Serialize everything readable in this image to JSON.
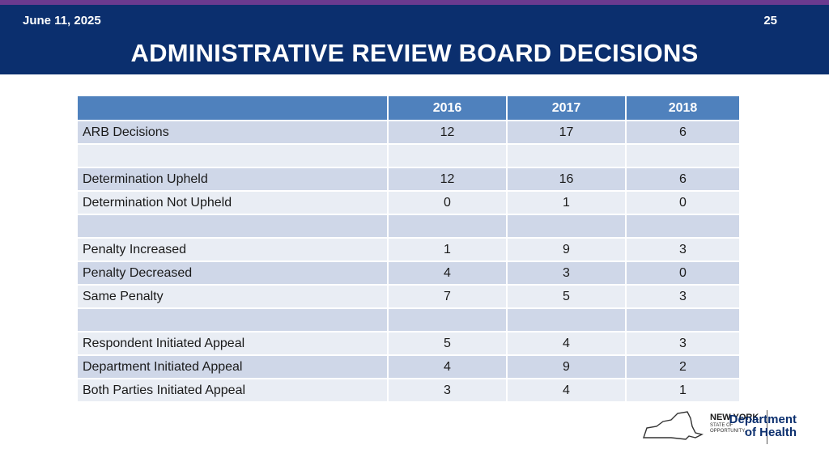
{
  "header": {
    "date": "June 11, 2025",
    "page_number": "25",
    "title": "ADMINISTRATIVE REVIEW BOARD DECISIONS"
  },
  "table": {
    "columns": [
      "",
      "2016",
      "2017",
      "2018"
    ],
    "rows": [
      {
        "label": "ARB Decisions",
        "values": [
          "12",
          "17",
          "6"
        ]
      },
      {
        "label": "",
        "values": [
          "",
          "",
          ""
        ]
      },
      {
        "label": "Determination Upheld",
        "values": [
          "12",
          "16",
          "6"
        ]
      },
      {
        "label": "Determination Not Upheld",
        "values": [
          "0",
          "1",
          "0"
        ]
      },
      {
        "label": "",
        "values": [
          "",
          "",
          ""
        ]
      },
      {
        "label": "Penalty Increased",
        "values": [
          "1",
          "9",
          "3"
        ]
      },
      {
        "label": "Penalty Decreased",
        "values": [
          "4",
          "3",
          "0"
        ]
      },
      {
        "label": "Same Penalty",
        "values": [
          "7",
          "5",
          "3"
        ]
      },
      {
        "label": "",
        "values": [
          "",
          "",
          ""
        ]
      },
      {
        "label": "Respondent Initiated Appeal",
        "values": [
          "5",
          "4",
          "3"
        ]
      },
      {
        "label": "Department Initiated Appeal",
        "values": [
          "4",
          "9",
          "2"
        ]
      },
      {
        "label": "Both Parties Initiated Appeal",
        "values": [
          "3",
          "4",
          "1"
        ]
      }
    ]
  },
  "logo": {
    "state_line1": "NEW YORK",
    "state_line2": "STATE OF",
    "state_line3": "OPPORTUNITY.",
    "department_line1": "Department",
    "department_line2": "of Health"
  },
  "colors": {
    "header_bg": "#0b2f6e",
    "top_stripe": "#6b3a8f",
    "table_header_bg": "#4f81bd",
    "row_odd_bg": "#cfd7e8",
    "row_even_bg": "#e9edf4"
  }
}
